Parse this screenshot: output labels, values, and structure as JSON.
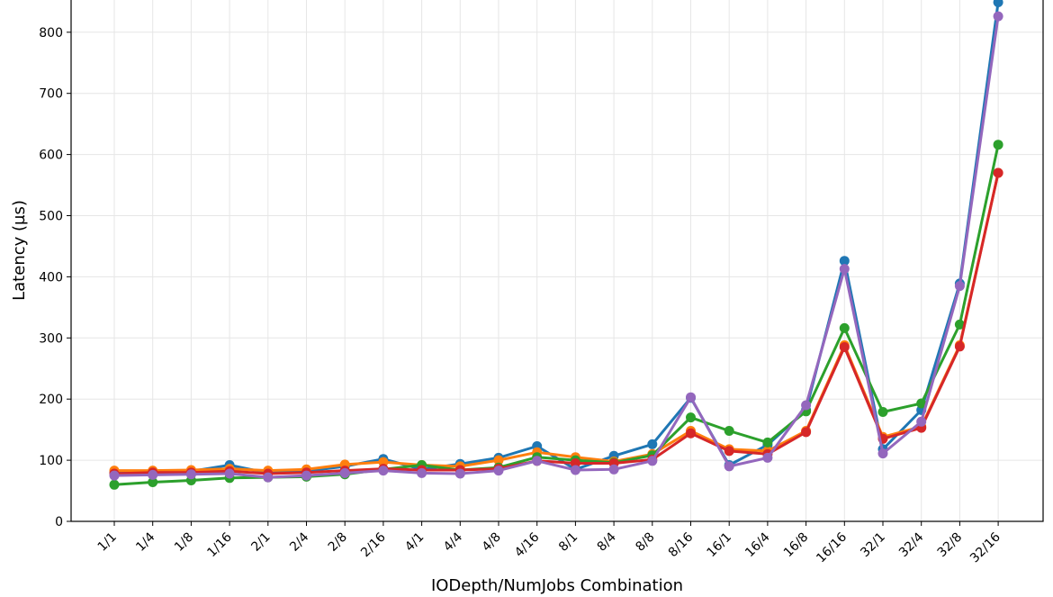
{
  "chart_data": {
    "type": "line",
    "xlabel": "IODepth/NumJobs Combination",
    "ylabel": "Latency (µs)",
    "ylim": [
      0,
      850
    ],
    "yticks": [
      0,
      100,
      200,
      300,
      400,
      500,
      600,
      700,
      800
    ],
    "grid": true,
    "categories": [
      "1/1",
      "1/4",
      "1/8",
      "1/16",
      "2/1",
      "2/4",
      "2/8",
      "2/16",
      "4/1",
      "4/4",
      "4/8",
      "4/16",
      "8/1",
      "8/4",
      "8/8",
      "8/16",
      "16/1",
      "16/4",
      "16/8",
      "16/16",
      "32/1",
      "32/4",
      "32/8",
      "32/16"
    ],
    "series": [
      {
        "color": "#1f77b4",
        "values": [
          80,
          80,
          82,
          92,
          79,
          82,
          90,
          102,
          85,
          94,
          104,
          123,
          85,
          107,
          126,
          202,
          92,
          125,
          182,
          426,
          118,
          182,
          389,
          849
        ]
      },
      {
        "color": "#ff7f0e",
        "values": [
          83,
          83,
          84,
          86,
          83,
          85,
          93,
          97,
          92,
          90,
          100,
          113,
          105,
          98,
          110,
          148,
          118,
          115,
          148,
          288,
          138,
          155,
          288,
          570
        ]
      },
      {
        "color": "#2ca02c",
        "values": [
          60,
          64,
          67,
          71,
          72,
          73,
          77,
          85,
          92,
          84,
          88,
          105,
          100,
          96,
          108,
          170,
          148,
          129,
          180,
          316,
          179,
          193,
          322,
          616
        ]
      },
      {
        "color": "#d62728",
        "values": [
          78,
          80,
          80,
          82,
          78,
          80,
          83,
          86,
          84,
          84,
          86,
          99,
          95,
          95,
          101,
          144,
          115,
          110,
          146,
          285,
          135,
          153,
          286,
          570
        ]
      },
      {
        "color": "#9467bd",
        "values": [
          75,
          76,
          77,
          78,
          72,
          75,
          79,
          83,
          79,
          78,
          83,
          99,
          84,
          85,
          99,
          203,
          90,
          104,
          190,
          413,
          111,
          163,
          385,
          826
        ]
      }
    ]
  }
}
